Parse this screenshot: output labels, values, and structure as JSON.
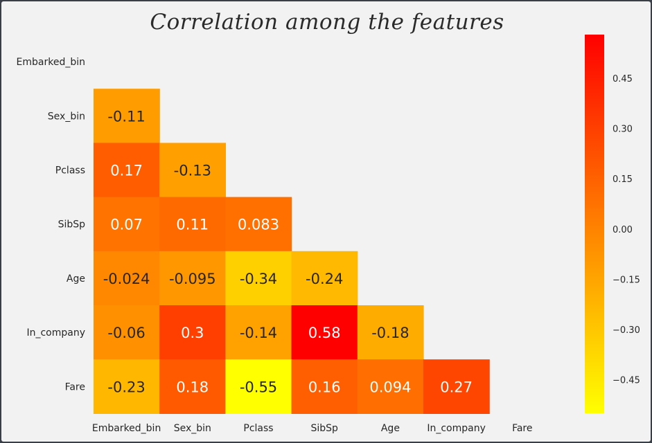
{
  "chart_data": {
    "type": "heatmap",
    "title": "Correlation among the features",
    "labels": [
      "Embarked_bin",
      "Sex_bin",
      "Pclass",
      "SibSp",
      "Age",
      "In_company",
      "Fare"
    ],
    "mask": "upper-triangle-including-diagonal",
    "matrix": [
      [
        null,
        null,
        null,
        null,
        null,
        null,
        null
      ],
      [
        -0.11,
        null,
        null,
        null,
        null,
        null,
        null
      ],
      [
        0.17,
        -0.13,
        null,
        null,
        null,
        null,
        null
      ],
      [
        0.07,
        0.11,
        0.083,
        null,
        null,
        null,
        null
      ],
      [
        -0.024,
        -0.095,
        -0.34,
        -0.24,
        null,
        null,
        null
      ],
      [
        -0.06,
        0.3,
        -0.14,
        0.58,
        -0.18,
        null,
        null
      ],
      [
        -0.23,
        0.18,
        -0.55,
        0.16,
        0.094,
        0.27,
        null
      ]
    ],
    "display_values": [
      [
        null,
        null,
        null,
        null,
        null,
        null,
        null
      ],
      [
        "-0.11",
        null,
        null,
        null,
        null,
        null,
        null
      ],
      [
        "0.17",
        "-0.13",
        null,
        null,
        null,
        null,
        null
      ],
      [
        "0.07",
        "0.11",
        "0.083",
        null,
        null,
        null,
        null
      ],
      [
        "-0.024",
        "-0.095",
        "-0.34",
        "-0.24",
        null,
        null,
        null
      ],
      [
        "-0.06",
        "0.3",
        "-0.14",
        "0.58",
        "-0.18",
        null,
        null
      ],
      [
        "-0.23",
        "0.18",
        "-0.55",
        "0.16",
        "0.094",
        "0.27",
        null
      ]
    ],
    "colormap": "autumn_r",
    "vmin": -0.55,
    "vmax": 0.58,
    "colorbar_ticks": [
      0.45,
      0.3,
      0.15,
      0.0,
      -0.15,
      -0.3,
      -0.45
    ],
    "colorbar_tick_labels": [
      "0.45",
      "0.30",
      "0.15",
      "0.00",
      "−0.15",
      "−0.30",
      "−0.45"
    ],
    "grid": false
  }
}
